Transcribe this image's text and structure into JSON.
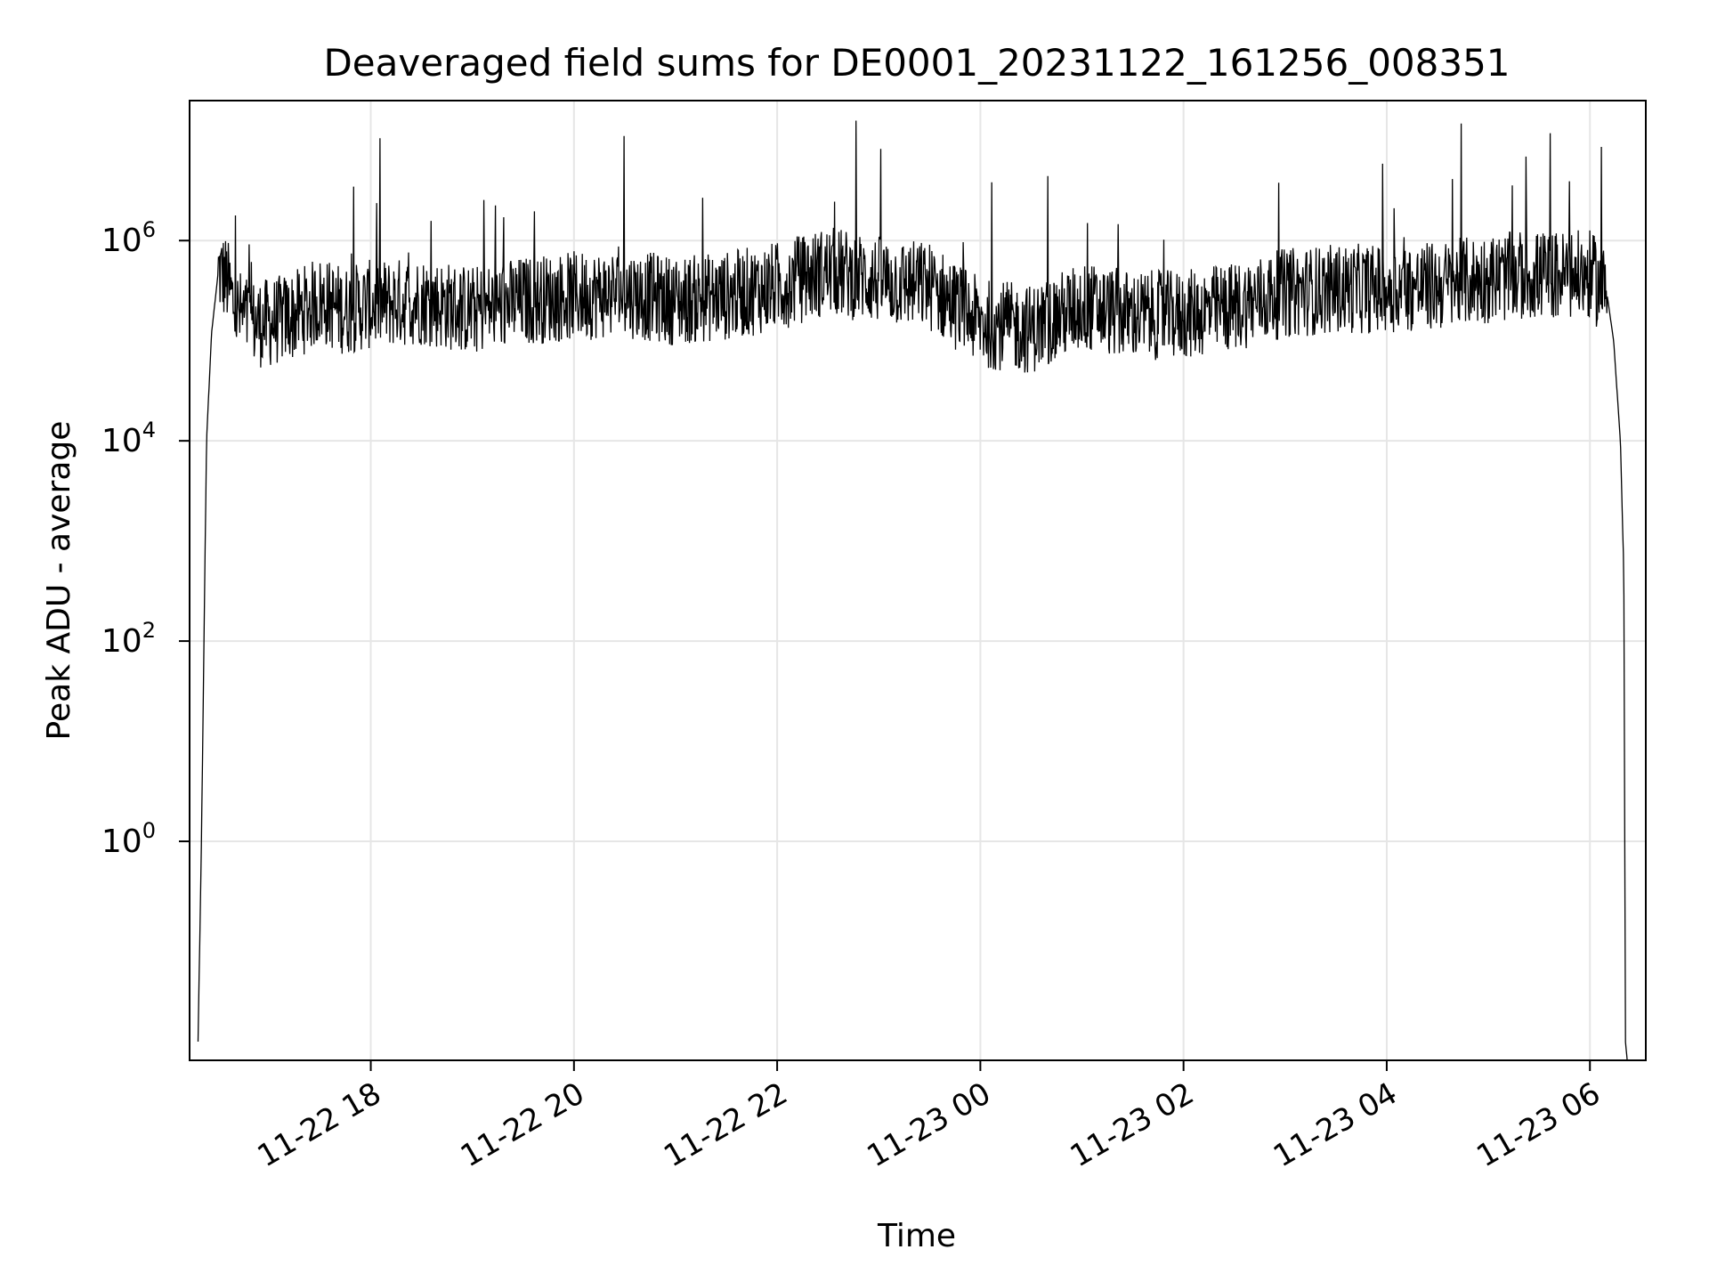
{
  "chart_data": {
    "type": "line",
    "title": "Deaveraged field sums for DE0001_20231122_161256_008351",
    "xlabel": "Time",
    "ylabel": "Peak ADU - average",
    "yscale": "log",
    "grid": true,
    "xlim": [
      "2023-11-22T16:13",
      "2023-11-23T06:33"
    ],
    "ylim": [
      0.0065,
      25000000
    ],
    "x_ticks": [
      "11-22 18",
      "11-22 20",
      "11-22 22",
      "11-23 00",
      "11-23 02",
      "11-23 04",
      "11-23 06"
    ],
    "y_ticks": [
      {
        "base": "10",
        "exp": "0",
        "value": 1
      },
      {
        "base": "10",
        "exp": "2",
        "value": 100
      },
      {
        "base": "10",
        "exp": "4",
        "value": 10000
      },
      {
        "base": "10",
        "exp": "6",
        "value": 1000000
      }
    ],
    "line_color": "#000000",
    "grid_color": "#e6e6e6",
    "series": [
      {
        "x": [
          "2023-11-22T16:18",
          "2023-11-22T16:20",
          "2023-11-22T16:23",
          "2023-11-22T16:26",
          "2023-11-22T16:30",
          "2023-11-22T16:35",
          "2023-11-22T16:40",
          "2023-11-22T16:50",
          "2023-11-22T17:00",
          "2023-11-22T17:15",
          "2023-11-22T17:30",
          "2023-11-22T17:45",
          "2023-11-22T18:00",
          "2023-11-22T18:30",
          "2023-11-22T19:00",
          "2023-11-22T19:30",
          "2023-11-22T20:00",
          "2023-11-22T20:30",
          "2023-11-22T21:00",
          "2023-11-22T21:30",
          "2023-11-22T22:00",
          "2023-11-22T22:30",
          "2023-11-22T23:00",
          "2023-11-22T23:30",
          "2023-11-23T00:00",
          "2023-11-23T00:30",
          "2023-11-23T01:00",
          "2023-11-23T01:30",
          "2023-11-23T02:00",
          "2023-11-23T02:30",
          "2023-11-23T03:00",
          "2023-11-23T03:30",
          "2023-11-23T04:00",
          "2023-11-23T04:30",
          "2023-11-23T05:00",
          "2023-11-23T05:30",
          "2023-11-23T06:00",
          "2023-11-23T06:10",
          "2023-11-23T06:14",
          "2023-11-23T06:18",
          "2023-11-23T06:20",
          "2023-11-23T06:21",
          "2023-11-23T06:22"
        ],
        "y": [
          0.01,
          1,
          10000,
          120000,
          500000,
          400000,
          200000,
          150000,
          150000,
          180000,
          250000,
          200000,
          230000,
          250000,
          200000,
          250000,
          280000,
          300000,
          250000,
          280000,
          350000,
          500000,
          400000,
          350000,
          150000,
          130000,
          220000,
          180000,
          180000,
          220000,
          300000,
          330000,
          330000,
          350000,
          420000,
          450000,
          450000,
          300000,
          100000,
          10000,
          500,
          0.01,
          0.0065
        ]
      }
    ]
  }
}
